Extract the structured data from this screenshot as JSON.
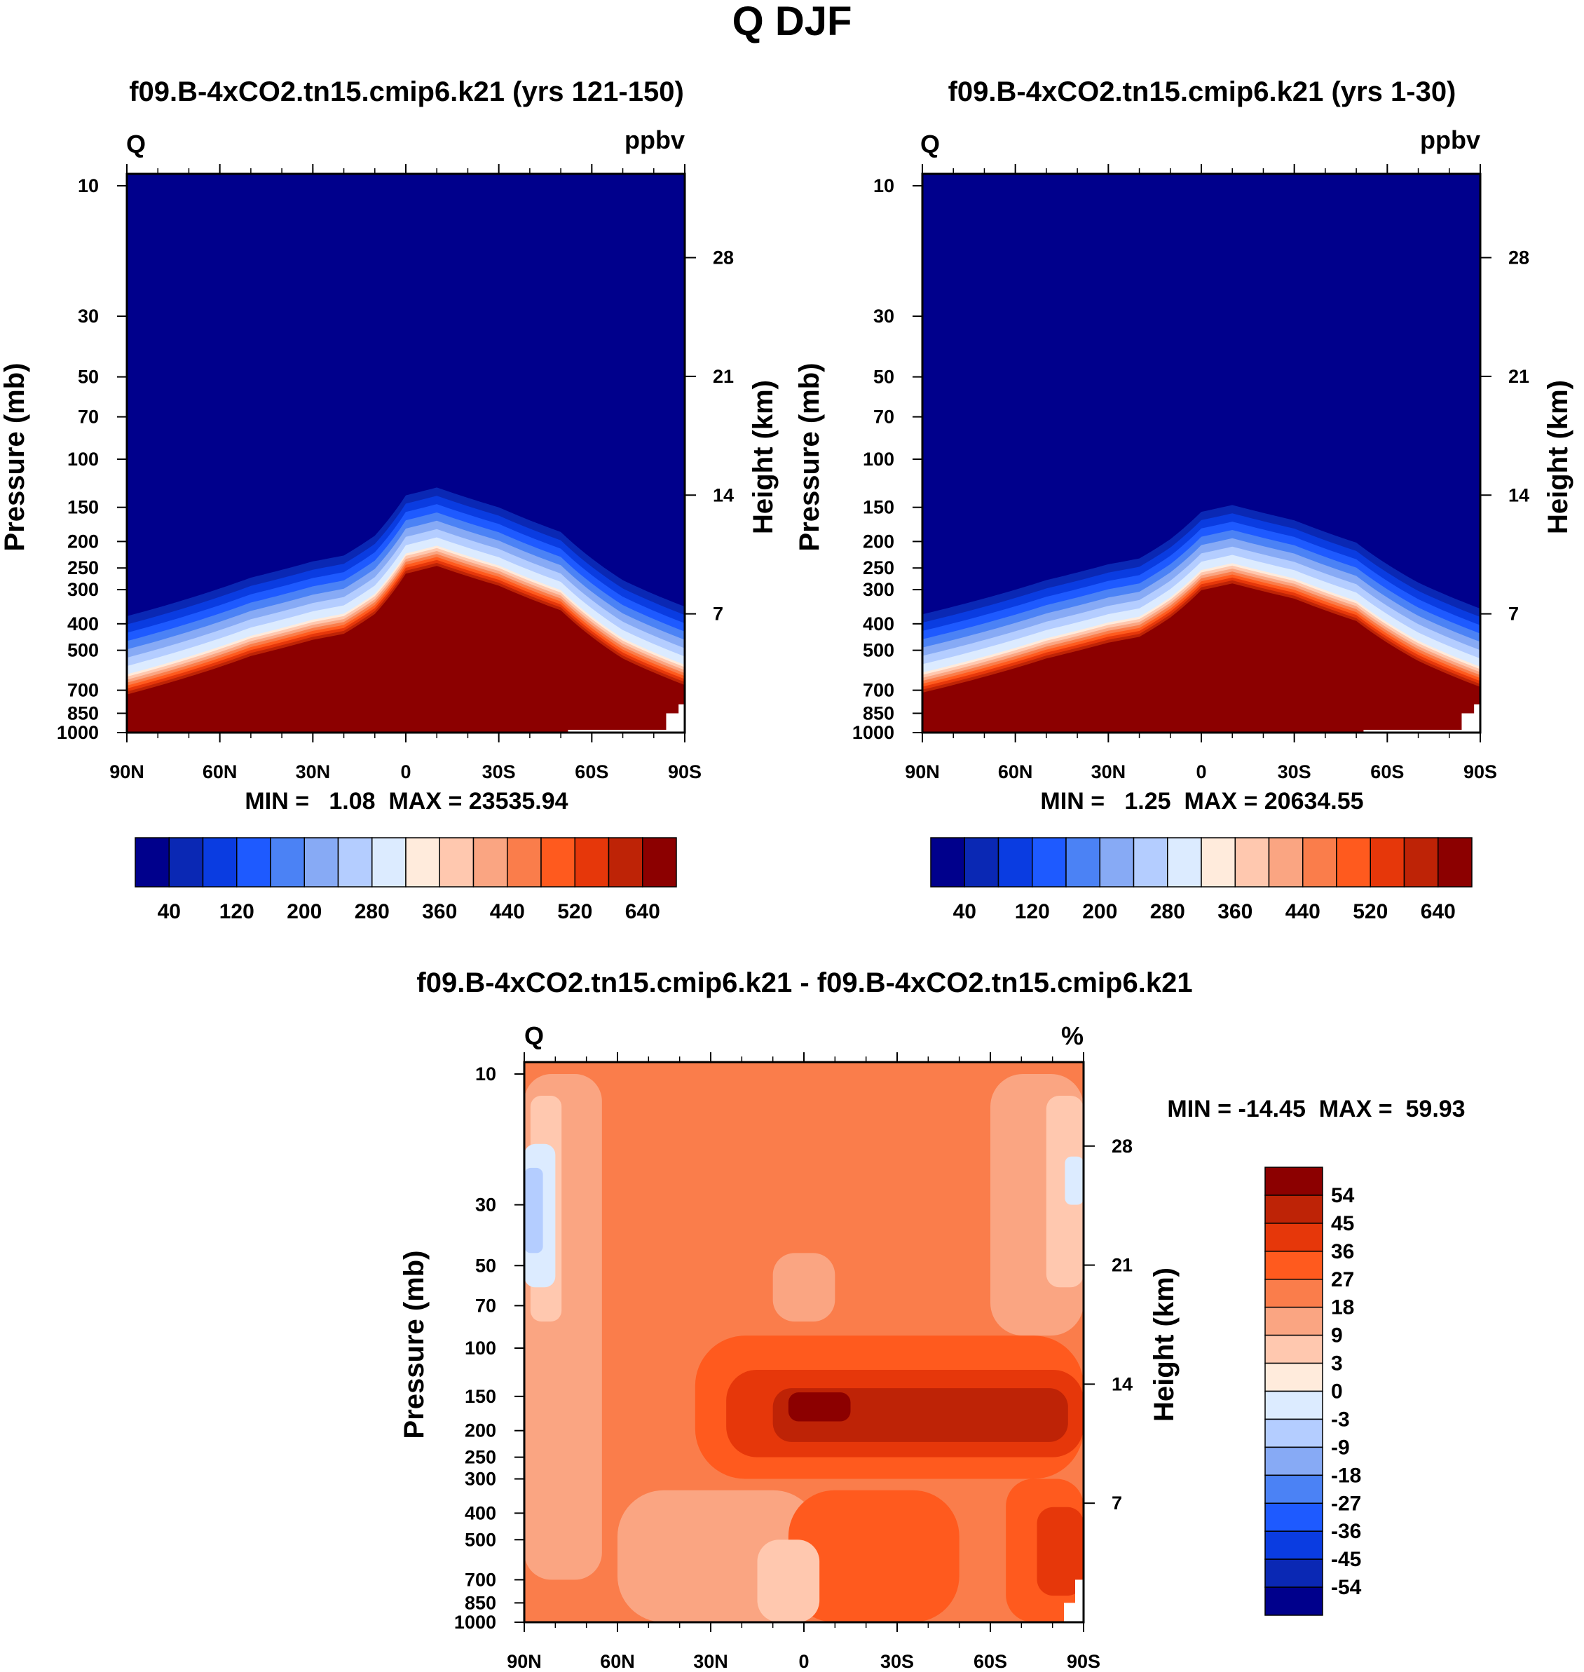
{
  "figure": {
    "title": "Q DJF"
  },
  "chart_data": [
    {
      "type": "heatmap",
      "panel": "top-left",
      "title": "f09.B-4xCO2.tn15.cmip6.k21 (yrs 121-150)",
      "left_label": "Q",
      "right_label": "ppbv",
      "xlabel": "",
      "ylabel": "Pressure (mb)",
      "ylabel_right": "Height (km)",
      "x_ticks": [
        "90N",
        "60N",
        "30N",
        "0",
        "30S",
        "60S",
        "90S"
      ],
      "y_ticks": [
        10,
        30,
        50,
        70,
        100,
        150,
        200,
        250,
        300,
        400,
        500,
        700,
        850,
        1000
      ],
      "y_ticks_right": [
        7,
        14,
        21,
        28
      ],
      "ylim": [
        1000,
        10
      ],
      "x_range": [
        90,
        -90
      ],
      "stats": "MIN =   1.08  MAX = 23535.94",
      "colorbar": {
        "labels": [
          "40",
          "120",
          "200",
          "280",
          "360",
          "440",
          "520",
          "640"
        ],
        "colors": [
          "#00008C",
          "#0A28B4",
          "#0A3CE1",
          "#1E5AFF",
          "#4B82F5",
          "#87AAF5",
          "#B4CDFF",
          "#DCEBFF",
          "#FFEBDC",
          "#FFC8AF",
          "#FAA582",
          "#FA7D4B",
          "#FF5A1E",
          "#E6370A",
          "#BE2306",
          "#8C0000"
        ]
      },
      "field": {
        "description": "tropopause-shaped transition",
        "transition_latitudes": [
          90,
          70,
          50,
          30,
          20,
          10,
          0,
          -10,
          -30,
          -50,
          -70,
          -90
        ],
        "transition_pressure_mb": [
          650,
          560,
          470,
          410,
          390,
          330,
          235,
          220,
          260,
          320,
          480,
          600
        ]
      }
    },
    {
      "type": "heatmap",
      "panel": "top-right",
      "title": "f09.B-4xCO2.tn15.cmip6.k21 (yrs 1-30)",
      "left_label": "Q",
      "right_label": "ppbv",
      "xlabel": "",
      "ylabel": "Pressure (mb)",
      "ylabel_right": "Height (km)",
      "x_ticks": [
        "90N",
        "60N",
        "30N",
        "0",
        "30S",
        "60S",
        "90S"
      ],
      "y_ticks": [
        10,
        30,
        50,
        70,
        100,
        150,
        200,
        250,
        300,
        400,
        500,
        700,
        850,
        1000
      ],
      "y_ticks_right": [
        7,
        14,
        21,
        28
      ],
      "ylim": [
        1000,
        10
      ],
      "x_range": [
        90,
        -90
      ],
      "stats": "MIN =   1.25  MAX = 20634.55",
      "colorbar": {
        "labels": [
          "40",
          "120",
          "200",
          "280",
          "360",
          "440",
          "520",
          "640"
        ],
        "colors": [
          "#00008C",
          "#0A28B4",
          "#0A3CE1",
          "#1E5AFF",
          "#4B82F5",
          "#87AAF5",
          "#B4CDFF",
          "#DCEBFF",
          "#FFEBDC",
          "#FFC8AF",
          "#FAA582",
          "#FA7D4B",
          "#FF5A1E",
          "#E6370A",
          "#BE2306",
          "#8C0000"
        ]
      },
      "field": {
        "description": "tropopause-shaped transition",
        "transition_latitudes": [
          90,
          70,
          50,
          30,
          20,
          10,
          0,
          -10,
          -30,
          -50,
          -70,
          -90
        ],
        "transition_pressure_mb": [
          640,
          560,
          480,
          420,
          400,
          340,
          270,
          255,
          290,
          350,
          490,
          610
        ]
      }
    },
    {
      "type": "heatmap",
      "panel": "bottom",
      "title": "f09.B-4xCO2.tn15.cmip6.k21 - f09.B-4xCO2.tn15.cmip6.k21",
      "left_label": "Q",
      "right_label": "%",
      "xlabel": "",
      "ylabel": "Pressure (mb)",
      "ylabel_right": "Height (km)",
      "x_ticks": [
        "90N",
        "60N",
        "30N",
        "0",
        "30S",
        "60S",
        "90S"
      ],
      "y_ticks": [
        10,
        30,
        50,
        70,
        100,
        150,
        200,
        250,
        300,
        400,
        500,
        700,
        850,
        1000
      ],
      "y_ticks_right": [
        7,
        14,
        21,
        28
      ],
      "ylim": [
        1000,
        10
      ],
      "x_range": [
        90,
        -90
      ],
      "stats": "MIN = -14.45  MAX =  59.93",
      "colorbar": {
        "labels": [
          "54",
          "45",
          "36",
          "27",
          "18",
          "9",
          "3",
          "0",
          "-3",
          "-9",
          "-18",
          "-27",
          "-36",
          "-45",
          "-54"
        ],
        "colors": [
          "#8C0000",
          "#BE2306",
          "#E6370A",
          "#FF5A1E",
          "#FA7D4B",
          "#FAA582",
          "#FFC8AF",
          "#FFEBDC",
          "#DCEBFF",
          "#B4CDFF",
          "#87AAF5",
          "#4B82F5",
          "#1E5AFF",
          "#0A3CE1",
          "#0A28B4",
          "#00008C"
        ]
      },
      "field": {
        "background_percent": 18,
        "regions": [
          {
            "lat": [
              90,
              65
            ],
            "p_mb": [
              10,
              700
            ],
            "percent": 9
          },
          {
            "lat": [
              -60,
              -90
            ],
            "p_mb": [
              10,
              90
            ],
            "percent": 9
          },
          {
            "lat": [
              88,
              78
            ],
            "p_mb": [
              12,
              80
            ],
            "percent": 3
          },
          {
            "lat": [
              -78,
              -90
            ],
            "p_mb": [
              12,
              60
            ],
            "percent": 3
          },
          {
            "lat": [
              90,
              80
            ],
            "p_mb": [
              18,
              60
            ],
            "percent": -3
          },
          {
            "lat": [
              -84,
              -90
            ],
            "p_mb": [
              20,
              30
            ],
            "percent": -3
          },
          {
            "lat": [
              90,
              84
            ],
            "p_mb": [
              22,
              45
            ],
            "percent": -9
          },
          {
            "lat": [
              10,
              -10
            ],
            "p_mb": [
              45,
              80
            ],
            "percent": 9
          },
          {
            "lat": [
              35,
              -90
            ],
            "p_mb": [
              90,
              300
            ],
            "percent": 27
          },
          {
            "lat": [
              25,
              -90
            ],
            "p_mb": [
              120,
              250
            ],
            "percent": 36
          },
          {
            "lat": [
              10,
              -85
            ],
            "p_mb": [
              140,
              220
            ],
            "percent": 45
          },
          {
            "lat": [
              5,
              -15
            ],
            "p_mb": [
              145,
              185
            ],
            "percent": 54
          },
          {
            "lat": [
              60,
              -5
            ],
            "p_mb": [
              330,
              1000
            ],
            "percent": 9
          },
          {
            "lat": [
              5,
              -50
            ],
            "p_mb": [
              330,
              1000
            ],
            "percent": 27
          },
          {
            "lat": [
              -65,
              -90
            ],
            "p_mb": [
              300,
              1000
            ],
            "percent": 27
          },
          {
            "lat": [
              -75,
              -90
            ],
            "p_mb": [
              380,
              800
            ],
            "percent": 36
          },
          {
            "lat": [
              15,
              -5
            ],
            "p_mb": [
              500,
              1000
            ],
            "percent": 3
          }
        ]
      }
    }
  ]
}
